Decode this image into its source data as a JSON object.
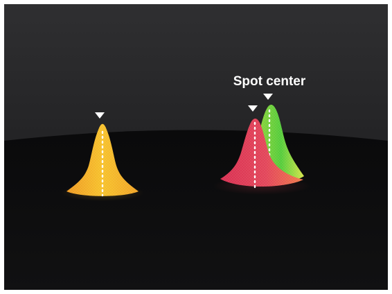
{
  "diagram": {
    "label": "Spot center",
    "colors": {
      "background_top": "#2d2d2f",
      "background_bottom": "#0b0b0c",
      "peak_single": "#f2b227",
      "peak_red": "#e23a52",
      "peak_green": "#6bd13a",
      "marker": "#ffffff"
    },
    "peaks": [
      {
        "name": "single-peak",
        "markers": 1
      },
      {
        "name": "double-peak",
        "markers": 2
      }
    ]
  }
}
